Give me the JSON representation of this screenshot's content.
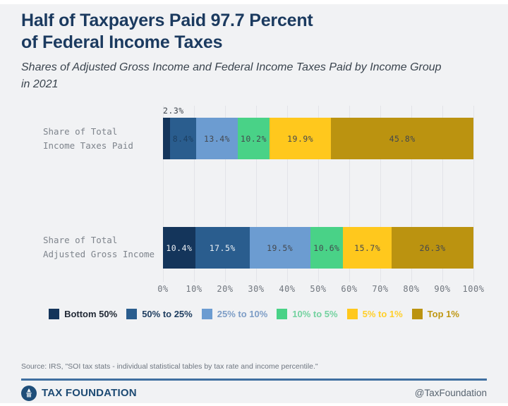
{
  "header": {
    "title": "Half of Taxpayers Paid 97.7 Percent\nof Federal Income Taxes",
    "subtitle": "Shares of Adjusted Gross Income and Federal Income Taxes Paid by Income Group\nin 2021"
  },
  "chart_data": {
    "type": "bar",
    "orientation": "horizontal",
    "stacked": true,
    "unit": "%",
    "categories": [
      "Share of Total\nIncome Taxes Paid",
      "Share of Total\nAdjusted Gross Income"
    ],
    "series": [
      {
        "name": "Bottom 50%",
        "color": "#14355b",
        "values": [
          2.3,
          10.4
        ]
      },
      {
        "name": "50% to 25%",
        "color": "#2a5d8e",
        "values": [
          8.4,
          17.5
        ]
      },
      {
        "name": "25% to 10%",
        "color": "#6c9cd1",
        "values": [
          13.4,
          19.5
        ]
      },
      {
        "name": "10% to 5%",
        "color": "#49d287",
        "values": [
          10.2,
          10.6
        ]
      },
      {
        "name": "5% to 1%",
        "color": "#ffc81d",
        "values": [
          19.9,
          15.7
        ]
      },
      {
        "name": "Top 1%",
        "color": "#bb9310",
        "values": [
          45.8,
          26.3
        ]
      }
    ],
    "segment_labels": [
      [
        "",
        "8.4%",
        "13.4%",
        "10.2%",
        "19.9%",
        "45.8%"
      ],
      [
        "10.4%",
        "17.5%",
        "19.5%",
        "10.6%",
        "15.7%",
        "26.3%"
      ]
    ],
    "outside_label": "2.3%",
    "x_ticks": [
      "0%",
      "10%",
      "20%",
      "30%",
      "40%",
      "50%",
      "60%",
      "70%",
      "80%",
      "90%",
      "100%"
    ],
    "xlim": [
      0,
      100
    ],
    "grid": true,
    "legend_position": "bottom"
  },
  "footer": {
    "source": "Source: IRS, \"SOI tax stats - individual statistical tables by tax rate and income percentile.\"",
    "brand": "TAX FOUNDATION",
    "handle": "@TaxFoundation"
  },
  "colors": {
    "background": "#f1f2f4",
    "title": "#1b3a5f",
    "grid": "#e3e4e8",
    "accent_rule": "#3f6fa0"
  }
}
